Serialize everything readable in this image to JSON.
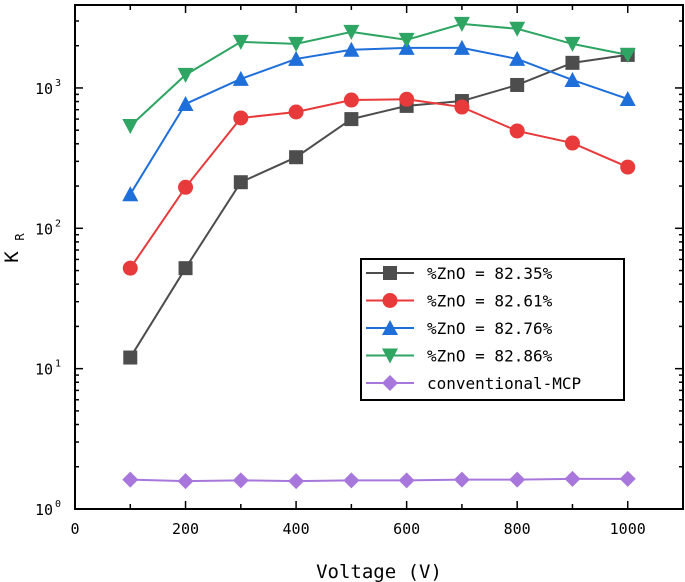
{
  "chart_data": {
    "type": "line",
    "title": "",
    "xlabel": "Voltage (V)",
    "ylabel": "K",
    "ylabel_subscript": "R",
    "xlim": [
      0,
      1100
    ],
    "ylim": [
      1,
      3900
    ],
    "yscale": "log",
    "grid": false,
    "legend_position": "center-right",
    "x_ticks": [
      "0",
      "200",
      "400",
      "600",
      "800",
      "1000"
    ],
    "y_ticks": [
      {
        "base": "10",
        "exp": "0"
      },
      {
        "base": "10",
        "exp": "1"
      },
      {
        "base": "10",
        "exp": "2"
      },
      {
        "base": "10",
        "exp": "3"
      }
    ],
    "x": [
      100,
      200,
      300,
      400,
      500,
      600,
      700,
      800,
      900,
      1000
    ],
    "series": [
      {
        "name": "%ZnO = 82.35%",
        "color": "#4d4d4d",
        "marker": "square",
        "values": [
          12,
          52,
          213,
          321,
          600,
          745,
          807,
          1050,
          1510,
          1720
        ]
      },
      {
        "name": "%ZnO = 82.61%",
        "color": "#e8393b",
        "marker": "circle",
        "values": [
          52,
          196,
          611,
          674,
          820,
          830,
          731,
          494,
          405,
          273
        ]
      },
      {
        "name": "%ZnO = 82.76%",
        "color": "#1f6fdb",
        "marker": "triangle-up",
        "values": [
          175,
          769,
          1160,
          1610,
          1870,
          1930,
          1930,
          1610,
          1140,
          835
        ]
      },
      {
        "name": "%ZnO = 82.86%",
        "color": "#2ea563",
        "marker": "triangle-down",
        "values": [
          536,
          1240,
          2130,
          2060,
          2510,
          2200,
          2860,
          2640,
          2060,
          1720
        ]
      },
      {
        "name": "conventional-MCP",
        "color": "#a877dc",
        "marker": "diamond",
        "values": [
          1.62,
          1.58,
          1.6,
          1.58,
          1.6,
          1.6,
          1.62,
          1.62,
          1.64,
          1.64
        ]
      }
    ]
  }
}
